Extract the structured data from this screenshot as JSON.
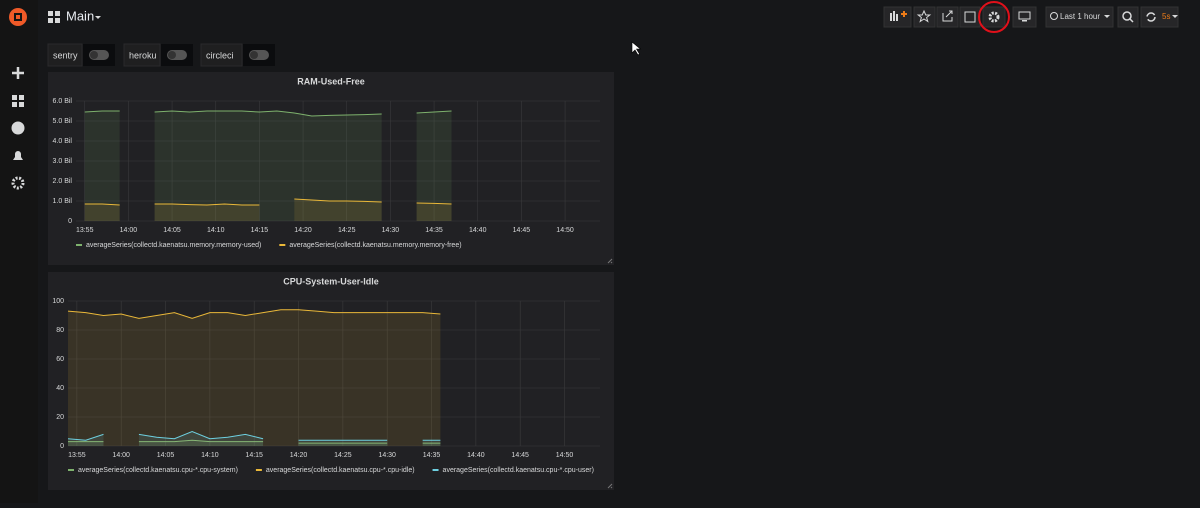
{
  "header": {
    "title": "Main",
    "time_range": "Last 1 hour",
    "refresh": "5s"
  },
  "variables": [
    {
      "label": "sentry"
    },
    {
      "label": "heroku"
    },
    {
      "label": "circleci"
    }
  ],
  "chart_data": [
    {
      "type": "line",
      "title": "RAM-Used-Free",
      "x": [
        "13:55",
        "13:57",
        "13:59",
        "14:01",
        "14:03",
        "14:05",
        "14:07",
        "14:09",
        "14:11",
        "14:13",
        "14:15",
        "14:17",
        "14:19",
        "14:21",
        "14:23",
        "14:25",
        "14:27",
        "14:29",
        "14:31",
        "14:33",
        "14:35",
        "14:37"
      ],
      "series": [
        {
          "name": "averageSeries(collectd.kaenatsu.memory.memory-used)",
          "color": "#7eb26d",
          "values": [
            5450000000,
            5500000000,
            5500000000,
            null,
            5450000000,
            5500000000,
            5450000000,
            5500000000,
            5500000000,
            5500000000,
            5450000000,
            5500000000,
            5400000000,
            5250000000,
            5280000000,
            5300000000,
            5320000000,
            5350000000,
            null,
            5400000000,
            5450000000,
            5500000000
          ]
        },
        {
          "name": "averageSeries(collectd.kaenatsu.memory.memory-free)",
          "color": "#eab839",
          "values": [
            850000000,
            850000000,
            800000000,
            null,
            850000000,
            850000000,
            820000000,
            800000000,
            850000000,
            800000000,
            800000000,
            null,
            1100000000,
            1050000000,
            1000000000,
            1000000000,
            980000000,
            950000000,
            null,
            900000000,
            880000000,
            850000000
          ]
        }
      ],
      "xlim": [
        "13:54",
        "14:54"
      ],
      "xticks": [
        "13:55",
        "14:00",
        "14:05",
        "14:10",
        "14:15",
        "14:20",
        "14:25",
        "14:30",
        "14:35",
        "14:40",
        "14:45",
        "14:50"
      ],
      "ylim": [
        0,
        6000000000
      ],
      "yticks": [
        0,
        {
          "value": 1000000000,
          "label": "1.0 Bil"
        },
        {
          "value": 2000000000,
          "label": "2.0 Bil"
        },
        {
          "value": 3000000000,
          "label": "3.0 Bil"
        },
        {
          "value": 4000000000,
          "label": "4.0 Bil"
        },
        {
          "value": 5000000000,
          "label": "5.0 Bil"
        },
        {
          "value": 6000000000,
          "label": "6.0 Bil"
        }
      ],
      "grid": true,
      "fill": true
    },
    {
      "type": "line",
      "title": "CPU-System-User-Idle",
      "x": [
        "13:54",
        "13:56",
        "13:58",
        "14:00",
        "14:02",
        "14:04",
        "14:06",
        "14:08",
        "14:10",
        "14:12",
        "14:14",
        "14:16",
        "14:18",
        "14:20",
        "14:22",
        "14:24",
        "14:26",
        "14:28",
        "14:30",
        "14:32",
        "14:34",
        "14:36"
      ],
      "series": [
        {
          "name": "averageSeries(collectd.kaenatsu.cpu-*.cpu-system)",
          "color": "#7eb26d",
          "values": [
            3,
            3,
            3,
            null,
            3,
            3,
            3,
            4,
            3,
            3,
            3,
            3,
            null,
            2,
            2,
            2,
            2,
            2,
            2,
            null,
            2,
            2
          ]
        },
        {
          "name": "averageSeries(collectd.kaenatsu.cpu-*.cpu-idle)",
          "color": "#eab839",
          "values": [
            93,
            92,
            90,
            91,
            88,
            90,
            92,
            88,
            92,
            92,
            90,
            92,
            94,
            94,
            93,
            92,
            92,
            92,
            92,
            92,
            92,
            91
          ]
        },
        {
          "name": "averageSeries(collectd.kaenatsu.cpu-*.cpu-user)",
          "color": "#6ed0e0",
          "values": [
            5,
            4,
            8,
            null,
            8,
            6,
            5,
            10,
            5,
            6,
            8,
            5,
            null,
            4,
            4,
            4,
            4,
            4,
            4,
            null,
            4,
            4
          ]
        }
      ],
      "xlim": [
        "13:54",
        "14:54"
      ],
      "xticks": [
        "13:55",
        "14:00",
        "14:05",
        "14:10",
        "14:15",
        "14:20",
        "14:25",
        "14:30",
        "14:35",
        "14:40",
        "14:45",
        "14:50"
      ],
      "ylim": [
        0,
        100
      ],
      "yticks": [
        0,
        20,
        40,
        60,
        80,
        100
      ],
      "grid": true,
      "fill": true
    }
  ]
}
